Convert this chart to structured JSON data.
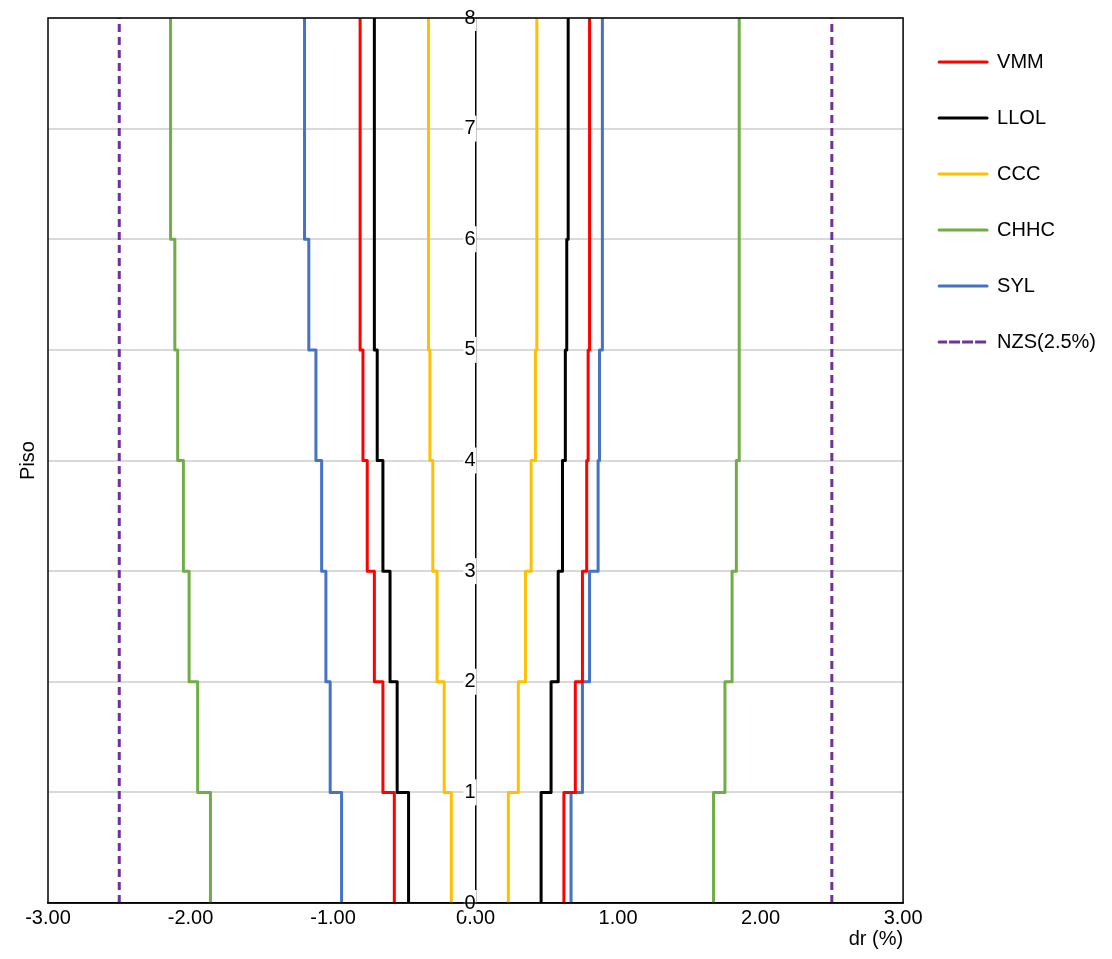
{
  "chart_data": {
    "type": "line",
    "xlabel": "dr (%)",
    "ylabel": "Piso",
    "xlim": [
      -3,
      3
    ],
    "ylim": [
      0,
      8
    ],
    "xticks": [
      {
        "value": -3,
        "label": "-3.00"
      },
      {
        "value": -2,
        "label": "-2.00"
      },
      {
        "value": -1,
        "label": "-1.00"
      },
      {
        "value": 0,
        "label": "0.00"
      },
      {
        "value": 1,
        "label": "1.00"
      },
      {
        "value": 2,
        "label": "2.00"
      },
      {
        "value": 3,
        "label": "3.00"
      }
    ],
    "yticks": [
      0,
      1,
      2,
      3,
      4,
      5,
      6,
      7,
      8
    ],
    "grid": "y",
    "legend": "right",
    "marker": "none",
    "series": [
      {
        "name": "VMM",
        "color": "#ff0000",
        "line_style": "solid",
        "x": [
          -0.57,
          -0.57,
          -0.65,
          -0.65,
          -0.71,
          -0.71,
          -0.76,
          -0.76,
          -0.79,
          -0.79,
          -0.81,
          -0.81,
          -0.81,
          -0.81,
          -0.81,
          -0.81,
          0,
          0.62,
          0.62,
          0.7,
          0.7,
          0.75,
          0.75,
          0.78,
          0.78,
          0.79,
          0.79,
          0.8,
          0.8,
          0.8,
          0.8,
          0.8,
          0.8
        ],
        "values": [
          0,
          1,
          1,
          2,
          2,
          3,
          3,
          4,
          4,
          5,
          5,
          6,
          6,
          7,
          7,
          8,
          null,
          0,
          1,
          1,
          2,
          2,
          3,
          3,
          4,
          4,
          5,
          5,
          6,
          6,
          7,
          7,
          8
        ]
      },
      {
        "name": "LLOL",
        "color": "#000000",
        "line_style": "solid",
        "x": [
          -0.47,
          -0.47,
          -0.55,
          -0.55,
          -0.6,
          -0.6,
          -0.65,
          -0.65,
          -0.69,
          -0.69,
          -0.71,
          -0.71,
          -0.71,
          -0.71,
          -0.71,
          -0.71,
          0,
          0.46,
          0.46,
          0.53,
          0.53,
          0.58,
          0.58,
          0.61,
          0.61,
          0.63,
          0.63,
          0.64,
          0.64,
          0.65,
          0.65,
          0.65,
          0.65
        ],
        "values": [
          0,
          1,
          1,
          2,
          2,
          3,
          3,
          4,
          4,
          5,
          5,
          6,
          6,
          7,
          7,
          8,
          null,
          0,
          1,
          1,
          2,
          2,
          3,
          3,
          4,
          4,
          5,
          5,
          6,
          6,
          7,
          7,
          8
        ]
      },
      {
        "name": "CCC",
        "color": "#ffc000",
        "line_style": "solid",
        "x": [
          -0.17,
          -0.17,
          -0.22,
          -0.22,
          -0.27,
          -0.27,
          -0.3,
          -0.3,
          -0.32,
          -0.32,
          -0.33,
          -0.33,
          -0.33,
          -0.33,
          -0.33,
          -0.33,
          0,
          0.23,
          0.23,
          0.3,
          0.3,
          0.35,
          0.35,
          0.39,
          0.39,
          0.42,
          0.42,
          0.43,
          0.43,
          0.43,
          0.43,
          0.43,
          0.43
        ],
        "values": [
          0,
          1,
          1,
          2,
          2,
          3,
          3,
          4,
          4,
          5,
          5,
          6,
          6,
          7,
          7,
          8,
          null,
          0,
          1,
          1,
          2,
          2,
          3,
          3,
          4,
          4,
          5,
          5,
          6,
          6,
          7,
          7,
          8
        ]
      },
      {
        "name": "CHHC",
        "color": "#70ad47",
        "line_style": "solid",
        "x": [
          -1.86,
          -1.86,
          -1.95,
          -1.95,
          -2.01,
          -2.01,
          -2.05,
          -2.05,
          -2.09,
          -2.09,
          -2.11,
          -2.11,
          -2.14,
          -2.14,
          -2.14,
          -2.14,
          0,
          1.67,
          1.67,
          1.75,
          1.75,
          1.8,
          1.8,
          1.83,
          1.83,
          1.85,
          1.85,
          1.85,
          1.85,
          1.85,
          1.85,
          1.85,
          1.85
        ],
        "values": [
          0,
          1,
          1,
          2,
          2,
          3,
          3,
          4,
          4,
          5,
          5,
          6,
          6,
          7,
          7,
          8,
          null,
          0,
          1,
          1,
          2,
          2,
          3,
          3,
          4,
          4,
          5,
          5,
          6,
          6,
          7,
          7,
          8
        ]
      },
      {
        "name": "SYL",
        "color": "#4472c4",
        "line_style": "solid",
        "x": [
          -0.94,
          -0.94,
          -1.02,
          -1.02,
          -1.05,
          -1.05,
          -1.08,
          -1.08,
          -1.12,
          -1.12,
          -1.17,
          -1.17,
          -1.2,
          -1.2,
          -1.2,
          -1.2,
          0,
          0.67,
          0.67,
          0.75,
          0.75,
          0.8,
          0.8,
          0.86,
          0.86,
          0.87,
          0.87,
          0.89,
          0.89,
          0.89,
          0.89,
          0.89,
          0.89
        ],
        "values": [
          0,
          1,
          1,
          2,
          2,
          3,
          3,
          4,
          4,
          5,
          5,
          6,
          6,
          7,
          7,
          8,
          null,
          0,
          1,
          1,
          2,
          2,
          3,
          3,
          4,
          4,
          5,
          5,
          6,
          6,
          7,
          7,
          8
        ]
      },
      {
        "name": "NZS(2.5%)",
        "color": "#7030a0",
        "line_style": "dashed",
        "x": [
          -2.5,
          -2.5,
          0,
          2.5,
          2.5
        ],
        "values": [
          0,
          8,
          null,
          0,
          8
        ]
      }
    ]
  }
}
